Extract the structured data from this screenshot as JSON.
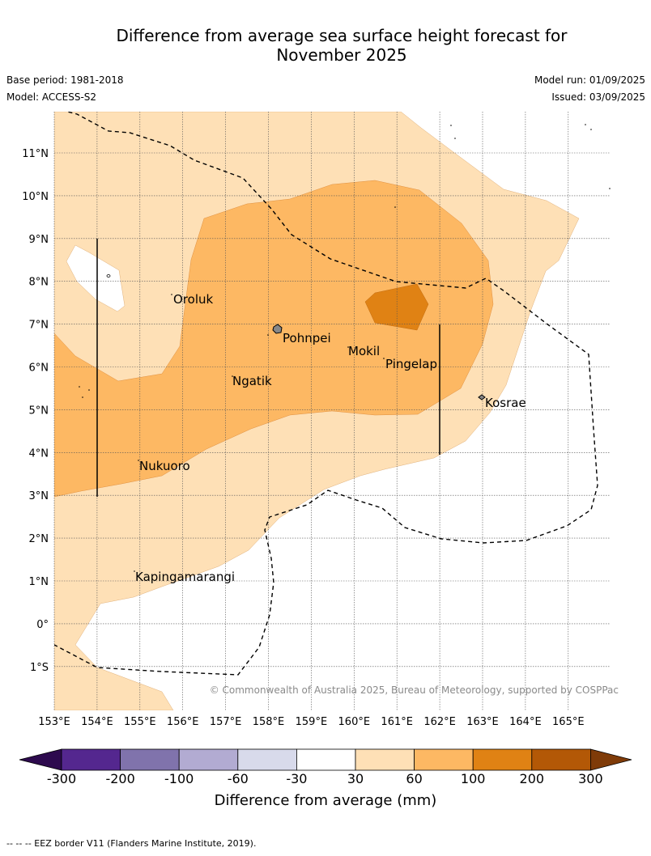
{
  "title": {
    "line1": "Difference from average sea surface height forecast for",
    "line2": "November 2025"
  },
  "meta": {
    "base_period": "Base period: 1981-2018",
    "model": "Model: ACCESS-S2",
    "model_run": "Model run: 01/09/2025",
    "issued": "Issued: 03/09/2025"
  },
  "axes": {
    "lon_ticks": [
      "153°E",
      "154°E",
      "155°E",
      "156°E",
      "157°E",
      "158°E",
      "159°E",
      "160°E",
      "161°E",
      "162°E",
      "163°E",
      "164°E",
      "165°E"
    ],
    "lat_ticks": [
      "11°N",
      "10°N",
      "9°N",
      "8°N",
      "7°N",
      "6°N",
      "5°N",
      "4°N",
      "3°N",
      "2°N",
      "1°N",
      "0°",
      "1°S"
    ]
  },
  "places": [
    "Oroluk",
    "Pohnpei",
    "Mokil",
    "Pingelap",
    "Ngatik",
    "Kosrae",
    "Nukuoro",
    "Kapingamarangi"
  ],
  "copyright": "© Commonwealth of Australia 2025, Bureau of Meteorology, supported by COSPPac",
  "colorbar": {
    "labels": [
      "-300",
      "-200",
      "-100",
      "-60",
      "-30",
      "30",
      "60",
      "100",
      "200",
      "300"
    ],
    "colors": [
      "#2d0a4e",
      "#54278f",
      "#8073ac",
      "#b2abd2",
      "#d8daeb",
      "#ffffff",
      "#fee0b6",
      "#fdb863",
      "#e08214",
      "#b35806",
      "#7f3b08"
    ],
    "title": "Difference from average (mm)"
  },
  "footnote": "--  --  -- EEZ border V11 (Flanders Marine Institute, 2019).",
  "colors": {
    "light_orange": "#fee0b6",
    "mid_orange": "#fdb863",
    "dark_orange": "#e08214"
  }
}
